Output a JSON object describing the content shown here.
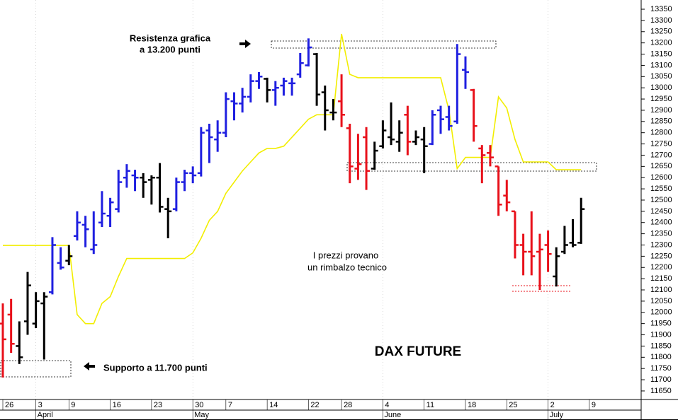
{
  "chart_data": {
    "type": "ohlc",
    "title": "DAX FUTURE",
    "annotations": {
      "resistance": [
        "Resistenza grafica",
        "a 13.200 punti"
      ],
      "support": "Supporto a 11.700 punti",
      "note": [
        "I prezzi provano",
        "un rimbalzo tecnico"
      ]
    },
    "x": [
      0,
      1,
      2,
      3,
      4,
      5,
      6,
      7,
      8,
      9,
      10,
      11,
      12,
      13,
      14,
      15,
      16,
      17,
      18,
      19,
      20,
      21,
      22,
      23,
      24,
      25,
      26,
      27,
      28,
      29,
      30,
      31,
      32,
      33,
      34,
      35,
      36,
      37,
      38,
      39,
      40,
      41,
      42,
      43,
      44,
      45,
      46,
      47,
      48,
      49,
      50,
      51,
      52,
      53,
      54,
      55,
      56,
      57,
      58,
      59,
      60,
      61,
      62,
      63,
      64,
      65,
      66,
      67,
      68,
      69,
      70
    ],
    "open": [
      11950,
      11990,
      11850,
      11960,
      11950,
      12040,
      12090,
      12220,
      12230,
      12340,
      12390,
      12280,
      12400,
      12430,
      12460,
      12600,
      12610,
      12600,
      12590,
      12600,
      12460,
      12460,
      12580,
      12620,
      12620,
      12810,
      12770,
      12800,
      12940,
      12930,
      12960,
      13030,
      13040,
      12990,
      13010,
      13020,
      13060,
      13100,
      13150,
      12980,
      12890,
      12940,
      12820,
      12640,
      12780,
      12640,
      12740,
      12780,
      12760,
      12880,
      12760,
      12770,
      12750,
      12900,
      12870,
      12850,
      13080,
      12990,
      12730,
      12710,
      12650,
      12520,
      12450,
      12300,
      12270,
      12270,
      12300,
      12160,
      12270,
      12310,
      12310
    ],
    "high": [
      12040,
      12060,
      11960,
      12180,
      12090,
      12090,
      12335,
      12290,
      12300,
      12450,
      12430,
      12450,
      12540,
      12510,
      12635,
      12660,
      12635,
      12620,
      12610,
      12665,
      12510,
      12600,
      12635,
      12650,
      12825,
      12840,
      12855,
      12980,
      12980,
      13000,
      13060,
      13070,
      13045,
      13030,
      13045,
      13045,
      13155,
      13220,
      13155,
      13010,
      12950,
      13060,
      12840,
      12795,
      12825,
      12760,
      12855,
      12935,
      12855,
      12920,
      12810,
      12825,
      12900,
      12920,
      12920,
      13195,
      13140,
      12995,
      12745,
      12745,
      12650,
      12590,
      12450,
      12350,
      12450,
      12350,
      12365,
      12290,
      12385,
      12415,
      12510
    ],
    "low": [
      11710,
      11820,
      11770,
      11900,
      11930,
      11790,
      12080,
      12190,
      12210,
      12320,
      12290,
      12260,
      12380,
      12380,
      12445,
      12555,
      12540,
      12510,
      12480,
      12445,
      12330,
      12450,
      12540,
      12575,
      12605,
      12665,
      12715,
      12780,
      12855,
      12890,
      12935,
      12995,
      12935,
      12920,
      12965,
      12965,
      13045,
      13095,
      12920,
      12810,
      12855,
      12825,
      12575,
      12590,
      12545,
      12635,
      12730,
      12745,
      12715,
      12700,
      12745,
      12620,
      12745,
      12795,
      12810,
      12840,
      12995,
      12760,
      12575,
      12650,
      12430,
      12450,
      12240,
      12165,
      12165,
      12100,
      12180,
      12115,
      12260,
      12290,
      12305
    ],
    "close": [
      11880,
      11860,
      11800,
      12120,
      12050,
      12070,
      12300,
      12200,
      12250,
      12400,
      12370,
      12300,
      12440,
      12490,
      12580,
      12630,
      12600,
      12580,
      12600,
      12470,
      12450,
      12580,
      12620,
      12610,
      12800,
      12780,
      12800,
      12950,
      12930,
      12960,
      13030,
      13050,
      12990,
      13000,
      13030,
      13020,
      13110,
      13180,
      12970,
      12900,
      12890,
      12880,
      12650,
      12660,
      12630,
      12720,
      12810,
      12770,
      12800,
      12760,
      12780,
      12740,
      12880,
      12860,
      12830,
      13150,
      13070,
      12830,
      12700,
      12690,
      12480,
      12490,
      12300,
      12270,
      12250,
      12280,
      12260,
      12250,
      12300,
      12300,
      12460
    ],
    "bar_colors": [
      "#e8101a",
      "#e8101a",
      "#000000",
      "#000000",
      "#000000",
      "#000000",
      "#1f1fe0",
      "#1f1fe0",
      "#000000",
      "#1f1fe0",
      "#1f1fe0",
      "#1f1fe0",
      "#1f1fe0",
      "#1f1fe0",
      "#1f1fe0",
      "#1f1fe0",
      "#1f1fe0",
      "#000000",
      "#000000",
      "#000000",
      "#000000",
      "#1f1fe0",
      "#1f1fe0",
      "#1f1fe0",
      "#1f1fe0",
      "#1f1fe0",
      "#1f1fe0",
      "#1f1fe0",
      "#1f1fe0",
      "#1f1fe0",
      "#1f1fe0",
      "#1f1fe0",
      "#000000",
      "#1f1fe0",
      "#1f1fe0",
      "#1f1fe0",
      "#1f1fe0",
      "#1f1fe0",
      "#000000",
      "#000000",
      "#000000",
      "#e8101a",
      "#e8101a",
      "#e8101a",
      "#e8101a",
      "#000000",
      "#000000",
      "#000000",
      "#000000",
      "#e8101a",
      "#000000",
      "#000000",
      "#1f1fe0",
      "#1f1fe0",
      "#1f1fe0",
      "#1f1fe0",
      "#1f1fe0",
      "#e8101a",
      "#e8101a",
      "#e8101a",
      "#e8101a",
      "#e8101a",
      "#e8101a",
      "#e8101a",
      "#e8101a",
      "#e8101a",
      "#e8101a",
      "#000000",
      "#000000",
      "#000000",
      "#000000"
    ],
    "line": {
      "color": "#f2ee00",
      "values": [
        12298,
        12298,
        12298,
        12298,
        12298,
        12298,
        12298,
        12298,
        12298,
        11990,
        11950,
        11950,
        12040,
        12070,
        12160,
        12240,
        12240,
        12240,
        12240,
        12240,
        12240,
        12240,
        12240,
        12265,
        12330,
        12410,
        12450,
        12530,
        12580,
        12630,
        12670,
        12710,
        12730,
        12730,
        12740,
        12780,
        12820,
        12860,
        12880,
        12880,
        12880,
        13240,
        13060,
        13045,
        13045,
        13045,
        13045,
        13045,
        13045,
        13045,
        13045,
        13045,
        13045,
        13045,
        12900,
        12640,
        12690,
        12690,
        12690,
        12690,
        12960,
        12910,
        12770,
        12670,
        12670,
        12670,
        12670,
        12635,
        12635,
        12635,
        12635
      ]
    },
    "xlim": [
      -0.343,
      77.27
    ],
    "ylim": [
      11612,
      13391
    ],
    "yticks": [
      11650,
      11700,
      11750,
      11800,
      11850,
      11900,
      11950,
      12000,
      12050,
      12100,
      12150,
      12200,
      12250,
      12300,
      12350,
      12400,
      12450,
      12500,
      12550,
      12600,
      12650,
      12700,
      12750,
      12800,
      12850,
      12900,
      12950,
      13000,
      13050,
      13100,
      13150,
      13200,
      13250,
      13300,
      13350
    ],
    "xticks": [
      {
        "value": 0,
        "label": "26"
      },
      {
        "value": 4,
        "label": "3"
      },
      {
        "value": 8,
        "label": "9"
      },
      {
        "value": 13,
        "label": "16"
      },
      {
        "value": 18,
        "label": "23"
      },
      {
        "value": 23,
        "label": "30"
      },
      {
        "value": 27,
        "label": "7"
      },
      {
        "value": 32,
        "label": "14"
      },
      {
        "value": 37,
        "label": "22"
      },
      {
        "value": 41,
        "label": "28"
      },
      {
        "value": 46,
        "label": "4"
      },
      {
        "value": 51,
        "label": "11"
      },
      {
        "value": 56,
        "label": "18"
      },
      {
        "value": 61,
        "label": "25"
      },
      {
        "value": 66,
        "label": "2"
      },
      {
        "value": 71,
        "label": "9"
      }
    ],
    "month_ticks": [
      {
        "value": 4,
        "label": "April"
      },
      {
        "value": 23,
        "label": "May"
      },
      {
        "value": 46,
        "label": "June"
      },
      {
        "value": 66,
        "label": "July"
      }
    ]
  }
}
